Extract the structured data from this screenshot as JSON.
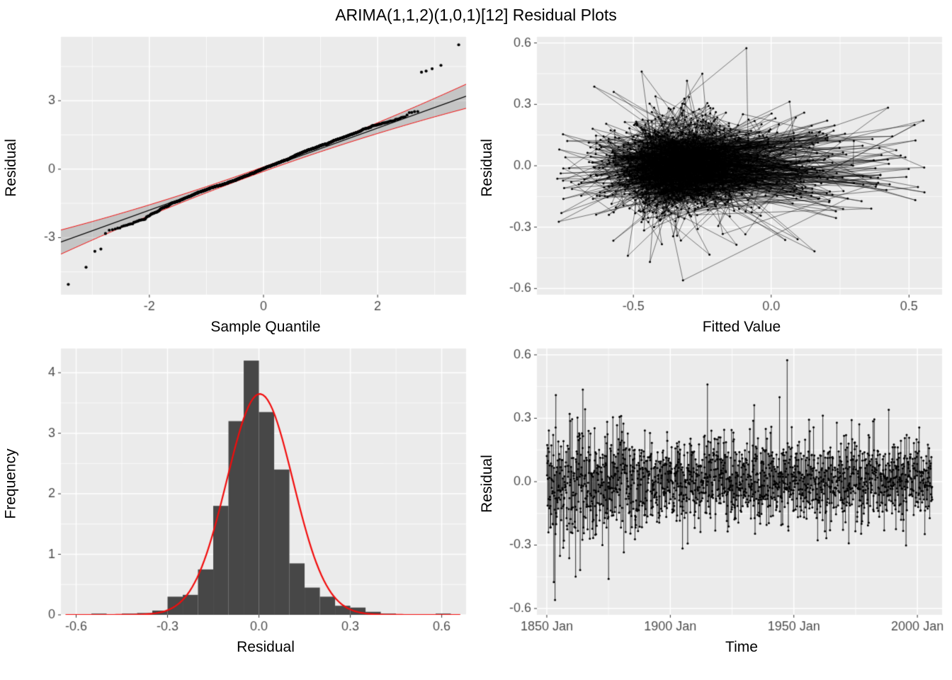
{
  "page": {
    "title": "ARIMA(1,1,2)(1,0,1)[12] Residual Plots"
  },
  "colors": {
    "panel_bg": "#EBEBEB",
    "grid": "#FFFFFF",
    "tick_text": "#4D4D4D",
    "tick_mark": "#333333",
    "point": "#000000",
    "red": "#F20D0D",
    "band_fill": "rgba(0,0,0,0.16)",
    "bar": "#474747"
  },
  "chart_data": [
    {
      "id": "qq-plot",
      "type": "qq",
      "title": "Normal Q-Q plot of residuals with confidence band",
      "xlabel": "Sample Quantile",
      "ylabel": "Residual",
      "xlim": [
        -3.55,
        3.55
      ],
      "ylim": [
        -5.5,
        5.8
      ],
      "xticks": [
        {
          "v": -2,
          "label": "-2"
        },
        {
          "v": 0,
          "label": "0"
        },
        {
          "v": 2,
          "label": "2"
        }
      ],
      "yticks": [
        {
          "v": -3,
          "label": "-3"
        },
        {
          "v": 0,
          "label": "0"
        },
        {
          "v": 3,
          "label": "3"
        }
      ],
      "n": 1600,
      "seed": 11,
      "core_sd": 0.95,
      "tail_sd": 1.85,
      "tail_frac": 0.03,
      "line": {
        "slope": 0.9,
        "intercept": 0
      },
      "band": {
        "base": 0.1,
        "quad": 0.034
      },
      "extremes_low": [
        -5.05,
        -4.3,
        -3.6,
        -3.5
      ],
      "extremes_high": [
        5.45,
        4.55,
        4.4,
        4.3,
        4.25
      ]
    },
    {
      "id": "residual-vs-fitted",
      "type": "series",
      "x_mode": "fitted",
      "title": "Residuals versus fitted values (points connected in time order)",
      "xlabel": "Fitted Value",
      "ylabel": "Residual",
      "xlim": [
        -0.85,
        0.62
      ],
      "ylim": [
        -0.63,
        0.63
      ],
      "xticks": [
        {
          "v": -0.5,
          "label": "-0.5"
        },
        {
          "v": 0.0,
          "label": "0.0"
        },
        {
          "v": 0.5,
          "label": "0.5"
        }
      ],
      "yticks": [
        {
          "v": -0.6,
          "label": "-0.6"
        },
        {
          "v": -0.3,
          "label": "-0.3"
        },
        {
          "v": 0.0,
          "label": "0.0"
        },
        {
          "v": 0.3,
          "label": "0.3"
        },
        {
          "v": 0.6,
          "label": "0.6"
        }
      ],
      "n": 1700,
      "seed": 7,
      "extremes": [
        {
          "i": 412,
          "x": -0.09,
          "y": 0.575
        },
        {
          "i": 845,
          "x": -0.32,
          "y": -0.56
        },
        {
          "i": 300,
          "x": -0.47,
          "y": 0.46
        },
        {
          "i": 620,
          "x": -0.44,
          "y": -0.47
        },
        {
          "i": 980,
          "x": -0.25,
          "y": 0.45
        },
        {
          "i": 1205,
          "x": -0.52,
          "y": -0.44
        },
        {
          "i": 1680,
          "x": 0.52,
          "y": 0.2
        },
        {
          "i": 1650,
          "x": 0.47,
          "y": 0.05
        }
      ]
    },
    {
      "id": "residual-histogram",
      "type": "histogram",
      "title": "Histogram of residuals with normal density curve",
      "xlabel": "Residual",
      "ylabel": "Frequency",
      "xlim": [
        -0.65,
        0.68
      ],
      "ylim": [
        0,
        4.4
      ],
      "xticks": [
        {
          "v": -0.6,
          "label": "-0.6"
        },
        {
          "v": -0.3,
          "label": "-0.3"
        },
        {
          "v": 0.0,
          "label": "0.0"
        },
        {
          "v": 0.3,
          "label": "0.3"
        },
        {
          "v": 0.6,
          "label": "0.6"
        }
      ],
      "yticks": [
        {
          "v": 0,
          "label": "0"
        },
        {
          "v": 1,
          "label": "1"
        },
        {
          "v": 2,
          "label": "2"
        },
        {
          "v": 3,
          "label": "3"
        },
        {
          "v": 4,
          "label": "4"
        }
      ],
      "bin_width": 0.05,
      "bars": [
        [
          -0.525,
          0.02
        ],
        [
          -0.425,
          0.02
        ],
        [
          -0.375,
          0.03
        ],
        [
          -0.325,
          0.07
        ],
        [
          -0.275,
          0.3
        ],
        [
          -0.225,
          0.33
        ],
        [
          -0.175,
          0.75
        ],
        [
          -0.125,
          1.8
        ],
        [
          -0.075,
          3.2
        ],
        [
          -0.025,
          4.2
        ],
        [
          0.025,
          3.35
        ],
        [
          0.075,
          2.4
        ],
        [
          0.125,
          0.85
        ],
        [
          0.175,
          0.45
        ],
        [
          0.225,
          0.3
        ],
        [
          0.275,
          0.15
        ],
        [
          0.325,
          0.12
        ],
        [
          0.375,
          0.05
        ],
        [
          0.425,
          0.02
        ],
        [
          0.605,
          0.02
        ]
      ],
      "curve": {
        "mean": 0.003,
        "sd": 0.109,
        "peak": 3.65
      }
    },
    {
      "id": "residual-vs-time",
      "type": "series",
      "x_mode": "time",
      "title": "Residuals over time (monthly series)",
      "xlabel": "Time",
      "ylabel": "Residual",
      "xlim": [
        1846,
        2010
      ],
      "ylim": [
        -0.63,
        0.63
      ],
      "x_start": 1850,
      "x_end": 2006,
      "xticks": [
        {
          "v": 1850,
          "label": "1850 Jan"
        },
        {
          "v": 1900,
          "label": "1900 Jan"
        },
        {
          "v": 1950,
          "label": "1950 Jan"
        },
        {
          "v": 2000,
          "label": "2000 Jan"
        }
      ],
      "yticks": [
        {
          "v": -0.6,
          "label": "-0.6"
        },
        {
          "v": -0.3,
          "label": "-0.3"
        },
        {
          "v": 0.0,
          "label": "0.0"
        },
        {
          "v": 0.3,
          "label": "0.3"
        },
        {
          "v": 0.6,
          "label": "0.6"
        }
      ],
      "n": 1872,
      "seed": 3,
      "eras": [
        [
          240,
          0.155
        ],
        [
          480,
          0.125
        ],
        [
          99999,
          0.105
        ]
      ],
      "extremes": [
        {
          "i": 1167,
          "y": 0.575
        },
        {
          "i": 40,
          "y": -0.56
        },
        {
          "i": 780,
          "y": 0.46
        },
        {
          "i": 1130,
          "y": 0.4
        },
        {
          "i": 44,
          "y": 0.41
        },
        {
          "i": 300,
          "y": -0.46
        },
        {
          "i": 1660,
          "y": 0.34
        }
      ]
    }
  ]
}
